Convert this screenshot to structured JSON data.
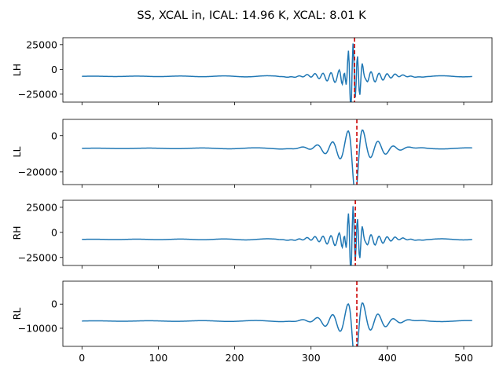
{
  "chart_data": {
    "type": "line",
    "title": "SS, XCAL in, ICAL: 14.96 K, XCAL: 8.01 K",
    "shared_x": true,
    "xlim": [
      -25,
      537
    ],
    "x_ticks": [
      0,
      100,
      200,
      300,
      400,
      500
    ],
    "line_color": "#1f77b4",
    "marker_color": "#cc0000",
    "marker_style": "dashed",
    "n_samples": 512,
    "panels": [
      {
        "ylabel": "LH",
        "ylim": [
          -33000,
          32000
        ],
        "y_ticks": [
          -25000,
          0,
          25000
        ],
        "baseline": -7000,
        "marker_x": 357,
        "signal": "fast",
        "center": 355,
        "amplitude": 32000
      },
      {
        "ylabel": "LL",
        "ylim": [
          -27000,
          9000
        ],
        "y_ticks": [
          -20000,
          0
        ],
        "baseline": -7000,
        "marker_x": 360,
        "signal": "slow",
        "center": 358,
        "amplitude": 19000
      },
      {
        "ylabel": "RH",
        "ylim": [
          -33000,
          32000
        ],
        "y_ticks": [
          -25000,
          0,
          25000
        ],
        "baseline": -7000,
        "marker_x": 358,
        "signal": "fast",
        "center": 355,
        "amplitude": 32000
      },
      {
        "ylabel": "RL",
        "ylim": [
          -17500,
          9500
        ],
        "y_ticks": [
          -10000,
          0
        ],
        "baseline": -7000,
        "marker_x": 360,
        "signal": "slow",
        "center": 358,
        "amplitude": 14000
      }
    ]
  }
}
